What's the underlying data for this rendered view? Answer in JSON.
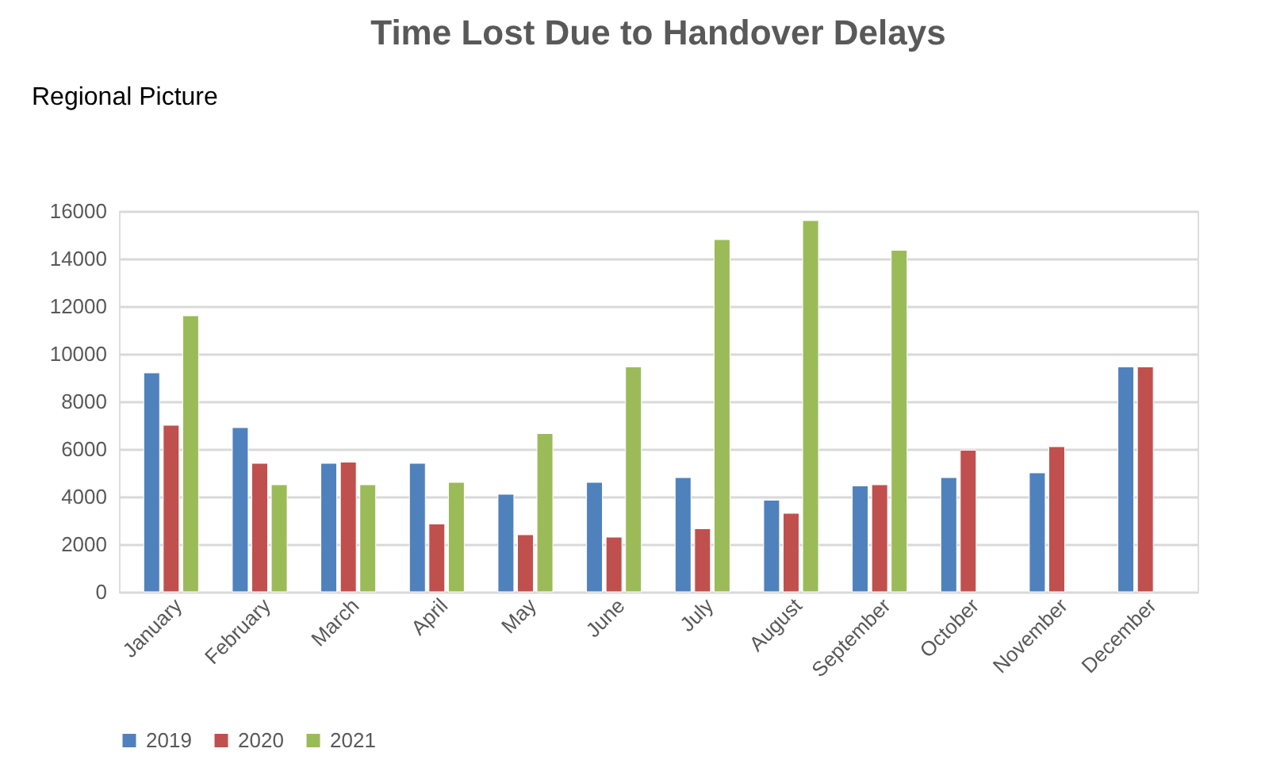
{
  "chart_data": {
    "type": "bar",
    "title": "Time Lost Due to Handover Delays",
    "annotations": [
      "Regional Picture"
    ],
    "categories": [
      "January",
      "February",
      "March",
      "April",
      "May",
      "June",
      "July",
      "August",
      "September",
      "October",
      "November",
      "December"
    ],
    "series": [
      {
        "name": "2019",
        "color": "#4f81bd",
        "values": [
          9200,
          6900,
          5400,
          5400,
          4100,
          4600,
          4800,
          3850,
          4450,
          4800,
          5000,
          9450
        ]
      },
      {
        "name": "2020",
        "color": "#c0504d",
        "values": [
          7000,
          5400,
          5450,
          2850,
          2400,
          2300,
          2650,
          3300,
          4500,
          5950,
          6100,
          9450
        ]
      },
      {
        "name": "2021",
        "color": "#9bbb59",
        "values": [
          11600,
          4500,
          4500,
          4600,
          6650,
          9450,
          14800,
          15600,
          14350,
          null,
          null,
          null
        ]
      }
    ],
    "ylim": [
      0,
      16000
    ],
    "yticks": [
      0,
      2000,
      4000,
      6000,
      8000,
      10000,
      12000,
      14000,
      16000
    ],
    "grid": "y",
    "legend": "bottom"
  }
}
